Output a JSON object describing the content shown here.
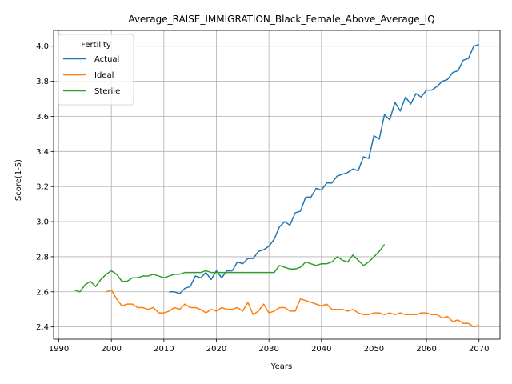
{
  "chart_data": {
    "type": "line",
    "title": "Average_RAISE_IMMIGRATION_Black_Female_Above_Average_IQ",
    "xlabel": "Years",
    "ylabel": "Score(1-5)",
    "xlim": [
      1989,
      2074
    ],
    "ylim": [
      2.33,
      4.09
    ],
    "xticks": [
      1990,
      2000,
      2010,
      2020,
      2030,
      2040,
      2050,
      2060,
      2070
    ],
    "yticks": [
      2.4,
      2.6,
      2.8,
      3.0,
      3.2,
      3.4,
      3.6,
      3.8,
      4.0
    ],
    "ytick_labels": [
      "2.4",
      "2.6",
      "2.8",
      "3.0",
      "3.2",
      "3.4",
      "3.6",
      "3.8",
      "4.0"
    ],
    "grid": true,
    "legend": {
      "title": "Fertility",
      "placement": "top-left"
    },
    "series": [
      {
        "name": "Actual",
        "color": "#1f77b4",
        "x": [
          2011,
          2012,
          2013,
          2014,
          2015,
          2016,
          2017,
          2018,
          2019,
          2020,
          2021,
          2022,
          2023,
          2024,
          2025,
          2026,
          2027,
          2028,
          2029,
          2030,
          2031,
          2032,
          2033,
          2034,
          2035,
          2036,
          2037,
          2038,
          2039,
          2040,
          2041,
          2042,
          2043,
          2044,
          2045,
          2046,
          2047,
          2048,
          2049,
          2050,
          2051,
          2052,
          2053,
          2054,
          2055,
          2056,
          2057,
          2058,
          2059,
          2060,
          2061,
          2062,
          2063,
          2064,
          2065,
          2066,
          2067,
          2068,
          2069,
          2070
        ],
        "values": [
          2.6,
          2.6,
          2.59,
          2.62,
          2.63,
          2.69,
          2.68,
          2.71,
          2.67,
          2.72,
          2.68,
          2.72,
          2.72,
          2.77,
          2.76,
          2.79,
          2.79,
          2.83,
          2.84,
          2.86,
          2.9,
          2.97,
          3.0,
          2.98,
          3.05,
          3.06,
          3.14,
          3.14,
          3.19,
          3.18,
          3.22,
          3.22,
          3.26,
          3.27,
          3.28,
          3.3,
          3.29,
          3.37,
          3.36,
          3.49,
          3.47,
          3.61,
          3.58,
          3.68,
          3.63,
          3.71,
          3.67,
          3.73,
          3.71,
          3.75,
          3.75,
          3.77,
          3.8,
          3.81,
          3.85,
          3.86,
          3.92,
          3.93,
          4.0,
          4.01
        ]
      },
      {
        "name": "Ideal",
        "color": "#ff7f0e",
        "x": [
          1999,
          2000,
          2001,
          2002,
          2003,
          2004,
          2005,
          2006,
          2007,
          2008,
          2009,
          2010,
          2011,
          2012,
          2013,
          2014,
          2015,
          2016,
          2017,
          2018,
          2019,
          2020,
          2021,
          2022,
          2023,
          2024,
          2025,
          2026,
          2027,
          2028,
          2029,
          2030,
          2031,
          2032,
          2033,
          2034,
          2035,
          2036,
          2037,
          2038,
          2039,
          2040,
          2041,
          2042,
          2043,
          2044,
          2045,
          2046,
          2047,
          2048,
          2049,
          2050,
          2051,
          2052,
          2053,
          2054,
          2055,
          2056,
          2057,
          2058,
          2059,
          2060,
          2061,
          2062,
          2063,
          2064,
          2065,
          2066,
          2067,
          2068,
          2069,
          2070
        ],
        "values": [
          2.6,
          2.61,
          2.56,
          2.52,
          2.53,
          2.53,
          2.51,
          2.51,
          2.5,
          2.51,
          2.48,
          2.48,
          2.49,
          2.51,
          2.5,
          2.53,
          2.51,
          2.51,
          2.5,
          2.48,
          2.5,
          2.49,
          2.51,
          2.5,
          2.5,
          2.51,
          2.49,
          2.54,
          2.47,
          2.49,
          2.53,
          2.48,
          2.49,
          2.51,
          2.51,
          2.49,
          2.49,
          2.56,
          2.55,
          2.54,
          2.53,
          2.52,
          2.53,
          2.5,
          2.5,
          2.5,
          2.49,
          2.5,
          2.48,
          2.47,
          2.47,
          2.48,
          2.48,
          2.47,
          2.48,
          2.47,
          2.48,
          2.47,
          2.47,
          2.47,
          2.48,
          2.48,
          2.47,
          2.47,
          2.45,
          2.46,
          2.43,
          2.44,
          2.42,
          2.42,
          2.4,
          2.41
        ]
      },
      {
        "name": "Sterile",
        "color": "#2ca02c",
        "x": [
          1993,
          1994,
          1995,
          1996,
          1997,
          1998,
          1999,
          2000,
          2001,
          2002,
          2003,
          2004,
          2005,
          2006,
          2007,
          2008,
          2009,
          2010,
          2011,
          2012,
          2013,
          2014,
          2015,
          2016,
          2017,
          2018,
          2019,
          2020,
          2021,
          2022,
          2023,
          2024,
          2025,
          2026,
          2027,
          2028,
          2029,
          2030,
          2031,
          2032,
          2033,
          2034,
          2035,
          2036,
          2037,
          2038,
          2039,
          2040,
          2041,
          2042,
          2043,
          2044,
          2045,
          2046,
          2047,
          2048,
          2049,
          2050,
          2051,
          2052
        ],
        "values": [
          2.61,
          2.6,
          2.64,
          2.66,
          2.63,
          2.67,
          2.7,
          2.72,
          2.7,
          2.66,
          2.66,
          2.68,
          2.68,
          2.69,
          2.69,
          2.7,
          2.69,
          2.68,
          2.69,
          2.7,
          2.7,
          2.71,
          2.71,
          2.71,
          2.71,
          2.72,
          2.71,
          2.71,
          2.71,
          2.71,
          2.71,
          2.71,
          2.71,
          2.71,
          2.71,
          2.71,
          2.71,
          2.71,
          2.71,
          2.75,
          2.74,
          2.73,
          2.73,
          2.74,
          2.77,
          2.76,
          2.75,
          2.76,
          2.76,
          2.77,
          2.8,
          2.78,
          2.77,
          2.81,
          2.78,
          2.75,
          2.77,
          2.8,
          2.83,
          2.87
        ]
      }
    ]
  }
}
